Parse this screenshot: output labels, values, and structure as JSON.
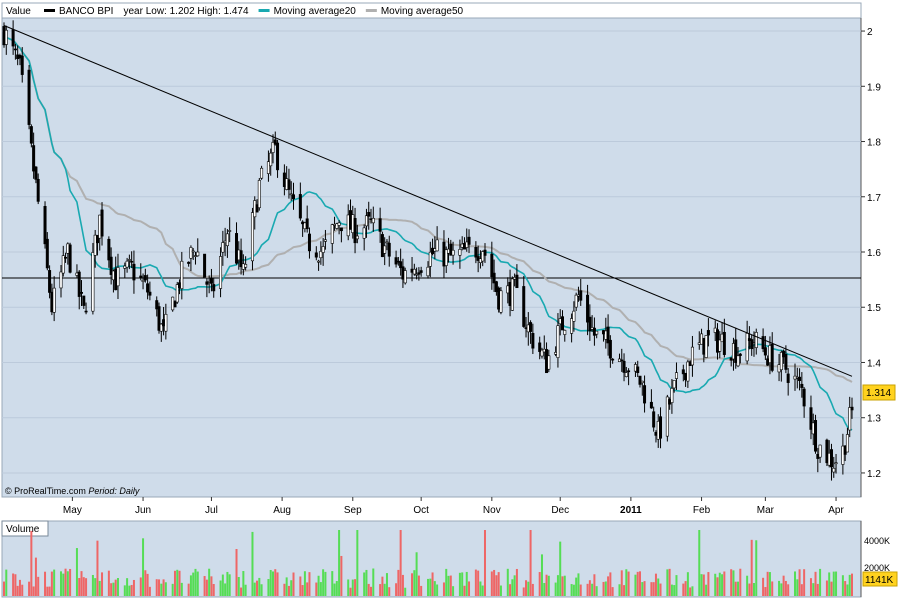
{
  "header": {
    "value_label": "Value",
    "legend": [
      {
        "label": "BANCO BPI",
        "color": "#000000"
      },
      {
        "label": "year Low: 1.202  High: 1.474",
        "color": null
      },
      {
        "label": "Moving average20",
        "color": "#19a9b1"
      },
      {
        "label": "Moving average50",
        "color": "#b0b0b0"
      }
    ]
  },
  "footer": {
    "credit": "© ProRealTime.com",
    "period_label": "Period",
    "period_value": "Daily"
  },
  "volume_panel": {
    "title": "Volume",
    "tick_labels": [
      "4000K",
      "2000K"
    ],
    "last_value": "1141K"
  },
  "colors": {
    "panel_bg": "#cfdcea",
    "up_volume": "#55dd55",
    "down_volume": "#ee6666",
    "price_badge": "#ffd21f",
    "ma20": "#19a9b1",
    "ma50": "#b0b0b0"
  },
  "chart_data": {
    "type": "candlestick",
    "title": "BANCO BPI",
    "ylim": [
      1.18,
      2.02
    ],
    "y_ticks": [
      1.2,
      1.3,
      1.4,
      1.5,
      1.6,
      1.7,
      1.8,
      1.9,
      2
    ],
    "y_tick_labels": [
      "1.2",
      "1.3",
      "1.4",
      "1.5",
      "1.6",
      "1.7",
      "1.8",
      "1.9",
      "2"
    ],
    "x_labels": [
      "May",
      "Jun",
      "Jul",
      "Aug",
      "Sep",
      "Oct",
      "Nov",
      "Dec",
      "2011",
      "Feb",
      "Mar",
      "Apr"
    ],
    "last_price": "1.314",
    "horizontal_line": 1.553,
    "trend_line": {
      "start": {
        "x": "2010-04-01",
        "y": 2.01
      },
      "end": {
        "x": "2011-04-08",
        "y": 1.375
      }
    },
    "price_path": [
      [
        "2010-04-01",
        2.0
      ],
      [
        "2010-04-08",
        1.93
      ],
      [
        "2010-04-15",
        1.72
      ],
      [
        "2010-04-22",
        1.5
      ],
      [
        "2010-04-29",
        1.6
      ],
      [
        "2010-05-06",
        1.49
      ],
      [
        "2010-05-13",
        1.66
      ],
      [
        "2010-05-20",
        1.55
      ],
      [
        "2010-05-27",
        1.57
      ],
      [
        "2010-06-03",
        1.53
      ],
      [
        "2010-06-10",
        1.45
      ],
      [
        "2010-06-17",
        1.55
      ],
      [
        "2010-06-24",
        1.61
      ],
      [
        "2010-07-01",
        1.52
      ],
      [
        "2010-07-08",
        1.64
      ],
      [
        "2010-07-15",
        1.56
      ],
      [
        "2010-07-22",
        1.72
      ],
      [
        "2010-07-29",
        1.785
      ],
      [
        "2010-08-05",
        1.69
      ],
      [
        "2010-08-12",
        1.62
      ],
      [
        "2010-08-19",
        1.6
      ],
      [
        "2010-08-26",
        1.66
      ],
      [
        "2010-09-02",
        1.64
      ],
      [
        "2010-09-09",
        1.65
      ],
      [
        "2010-09-16",
        1.6
      ],
      [
        "2010-09-23",
        1.56
      ],
      [
        "2010-09-30",
        1.58
      ],
      [
        "2010-10-07",
        1.6
      ],
      [
        "2010-10-14",
        1.59
      ],
      [
        "2010-10-21",
        1.6
      ],
      [
        "2010-10-28",
        1.61
      ],
      [
        "2010-11-04",
        1.52
      ],
      [
        "2010-11-11",
        1.53
      ],
      [
        "2010-11-18",
        1.45
      ],
      [
        "2010-11-25",
        1.4
      ],
      [
        "2010-12-02",
        1.47
      ],
      [
        "2010-12-09",
        1.52
      ],
      [
        "2010-12-16",
        1.45
      ],
      [
        "2010-12-23",
        1.43
      ],
      [
        "2010-12-30",
        1.4
      ],
      [
        "2011-01-06",
        1.36
      ],
      [
        "2011-01-13",
        1.27
      ],
      [
        "2011-01-20",
        1.35
      ],
      [
        "2011-01-27",
        1.41
      ],
      [
        "2011-02-03",
        1.44
      ],
      [
        "2011-02-10",
        1.44
      ],
      [
        "2011-02-17",
        1.42
      ],
      [
        "2011-02-24",
        1.44
      ],
      [
        "2011-03-03",
        1.41
      ],
      [
        "2011-03-10",
        1.39
      ],
      [
        "2011-03-17",
        1.35
      ],
      [
        "2011-03-24",
        1.25
      ],
      [
        "2011-03-31",
        1.22
      ],
      [
        "2011-04-04",
        1.24
      ],
      [
        "2011-04-08",
        1.314
      ]
    ],
    "series": [
      {
        "name": "BANCO BPI",
        "color": "#000000"
      },
      {
        "name": "Moving average20",
        "color": "#19a9b1"
      },
      {
        "name": "Moving average50",
        "color": "#b0b0b0"
      }
    ],
    "grid": true
  }
}
